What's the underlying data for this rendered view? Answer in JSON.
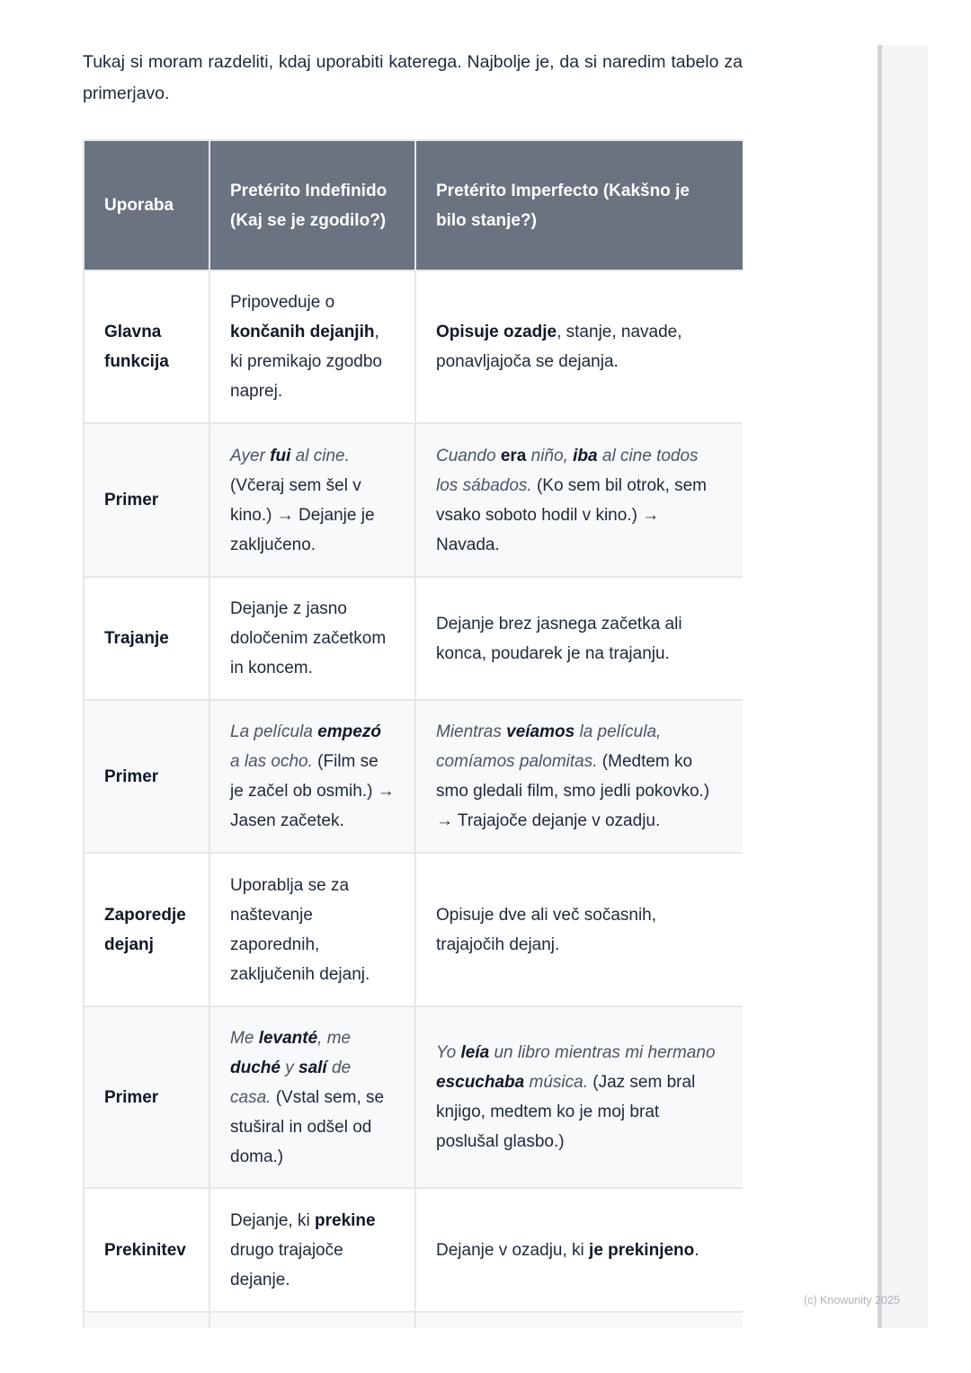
{
  "intro": "Tukaj si moram razdeliti, kdaj uporabiti katerega. Najbolje je, da si naredim tabelo za primerjavo.",
  "table": {
    "headers": [
      "Uporaba",
      "Pretérito Indefinido (Kaj se je zgodilo?)",
      "Pretérito Imperfecto (Kakšno je bilo stanje?)"
    ],
    "rows": [
      {
        "label": "Glavna funkcija",
        "c1": [
          {
            "t": "Pripoveduje o "
          },
          {
            "t": "končanih dejanjih",
            "s": "b"
          },
          {
            "t": ", ki premikajo zgodbo naprej."
          }
        ],
        "c2": [
          {
            "t": "Opisuje ozadje",
            "s": "b"
          },
          {
            "t": ", stanje, navade, ponavljajoča se dejanja."
          }
        ]
      },
      {
        "label": "Primer",
        "c1": [
          {
            "t": "Ayer ",
            "s": "i"
          },
          {
            "t": "fui",
            "s": "b i"
          },
          {
            "t": " al cine.",
            "s": "i"
          },
          {
            "t": " (Včeraj sem šel v kino.) → Dejanje je zaključeno."
          }
        ],
        "c2": [
          {
            "t": "Cuando ",
            "s": "i"
          },
          {
            "t": "era",
            "s": "b"
          },
          {
            "t": " niño, ",
            "s": "i"
          },
          {
            "t": "iba",
            "s": "b i"
          },
          {
            "t": " al cine todos los sábados.",
            "s": "i"
          },
          {
            "t": " (Ko sem bil otrok, sem vsako soboto hodil v kino.) → Navada."
          }
        ]
      },
      {
        "label": "Trajanje",
        "c1": [
          {
            "t": "Dejanje z jasno določenim začetkom in koncem."
          }
        ],
        "c2": [
          {
            "t": "Dejanje brez jasnega začetka ali konca, poudarek je na trajanju."
          }
        ]
      },
      {
        "label": "Primer",
        "c1": [
          {
            "t": "La película ",
            "s": "i"
          },
          {
            "t": "empezó",
            "s": "b i"
          },
          {
            "t": " a las ocho.",
            "s": "i"
          },
          {
            "t": " (Film se je začel ob osmih.) → Jasen začetek."
          }
        ],
        "c2": [
          {
            "t": "Mientras ",
            "s": "i"
          },
          {
            "t": "veíamos",
            "s": "b i"
          },
          {
            "t": " la película, comíamos palomitas.",
            "s": "i"
          },
          {
            "t": " (Medtem ko smo gledali film, smo jedli pokovko.) → Trajajoče dejanje v ozadju."
          }
        ]
      },
      {
        "label": "Zaporedje dejanj",
        "c1": [
          {
            "t": "Uporablja se za naštevanje zaporednih, zaključenih dejanj."
          }
        ],
        "c2": [
          {
            "t": "Opisuje dve ali več sočasnih, trajajočih dejanj."
          }
        ]
      },
      {
        "label": "Primer",
        "c1": [
          {
            "t": "Me ",
            "s": "i"
          },
          {
            "t": "levanté",
            "s": "b i"
          },
          {
            "t": ", me ",
            "s": "i"
          },
          {
            "t": "duché",
            "s": "b i"
          },
          {
            "t": " y ",
            "s": "i"
          },
          {
            "t": "salí",
            "s": "b i"
          },
          {
            "t": " de casa.",
            "s": "i"
          },
          {
            "t": " (Vstal sem, se stuširal in odšel od doma.)"
          }
        ],
        "c2": [
          {
            "t": "Yo ",
            "s": "i"
          },
          {
            "t": "leía",
            "s": "b i"
          },
          {
            "t": " un libro mientras mi hermano ",
            "s": "i"
          },
          {
            "t": "escuchaba",
            "s": "b i"
          },
          {
            "t": " música.",
            "s": "i"
          },
          {
            "t": " (Jaz sem bral knjigo, medtem ko je moj brat poslušal glasbo.)"
          }
        ]
      },
      {
        "label": "Prekinitev",
        "c1": [
          {
            "t": "Dejanje, ki "
          },
          {
            "t": "prekine",
            "s": "b"
          },
          {
            "t": " drugo trajajoče dejanje."
          }
        ],
        "c2": [
          {
            "t": "Dejanje v ozadju, ki "
          },
          {
            "t": "je prekinjeno",
            "s": "b"
          },
          {
            "t": "."
          }
        ]
      }
    ]
  },
  "watermark": "(c) Knowunity 2025",
  "colors": {
    "header_bg": "#6b7280",
    "alt_row_bg": "#f8f9fb",
    "border": "#e5e7eb"
  }
}
